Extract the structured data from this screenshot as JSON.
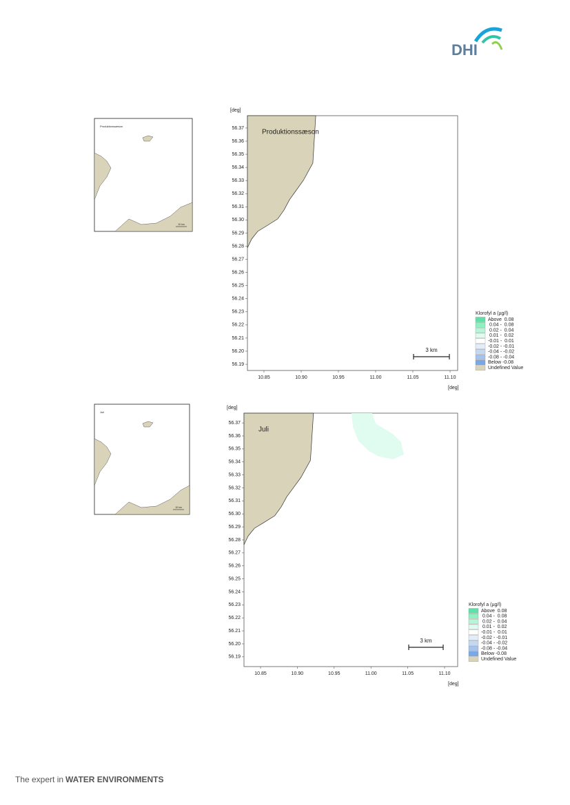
{
  "header": {
    "logo": "DHI"
  },
  "maps": [
    {
      "title": "Produktionssæson",
      "y_unit": "[deg]",
      "x_unit": "[deg]",
      "ylim": [
        56.1853,
        56.3794
      ],
      "xlim": [
        10.8278,
        11.1102
      ],
      "yticks": [
        56.19,
        {
          "value": 56.2,
          "label": "56.20"
        },
        56.21,
        56.22,
        56.23,
        56.24,
        56.25,
        56.26,
        56.27,
        56.28,
        56.29,
        {
          "value": 56.3,
          "label": "56.30"
        },
        56.31,
        56.32,
        56.33,
        56.34,
        56.35,
        56.36,
        56.37
      ],
      "xticks": [
        10.85,
        {
          "value": 10.9,
          "label": "10.90"
        },
        10.95,
        {
          "value": 11,
          "label": "11.00"
        },
        11.05,
        {
          "value": 11.1,
          "label": "11.10"
        }
      ],
      "scale_label": "3 km",
      "legend": {
        "title": "Klorofyl a (µg/l)",
        "entries": [
          {
            "label": "Above  0.08",
            "color": "#5fe0a8"
          },
          {
            "label": " 0.04 -  0.08",
            "color": "#8ff0c0"
          },
          {
            "label": " 0.02 -  0.04",
            "color": "#b8f5d8"
          },
          {
            "label": " 0.01 -  0.02",
            "color": "#e0fbef"
          },
          {
            "label": "-0.01 -  0.01",
            "color": "#ffffff"
          },
          {
            "label": "-0.02 - -0.01",
            "color": "#e3edf9"
          },
          {
            "label": "-0.04 - -0.02",
            "color": "#c5d8f2"
          },
          {
            "label": "-0.08 - -0.04",
            "color": "#a5c3ec"
          },
          {
            "label": "Below -0.08",
            "color": "#7aa8e4"
          },
          {
            "label": "Undefined Value",
            "color": "#d9d4b9"
          }
        ]
      },
      "inset": {
        "title": "Produktionssæson",
        "scale_label": "10 km"
      }
    },
    {
      "title": "Juli",
      "y_unit": "[deg]",
      "x_unit": "[deg]",
      "ylim": [
        56.1825,
        56.3775
      ],
      "xlim": [
        10.8275,
        11.1178
      ],
      "yticks": [
        56.19,
        {
          "value": 56.2,
          "label": "56.20"
        },
        56.21,
        56.22,
        56.23,
        56.24,
        56.25,
        56.26,
        56.27,
        56.28,
        56.29,
        {
          "value": 56.3,
          "label": "56.30"
        },
        56.31,
        56.32,
        56.33,
        56.34,
        56.35,
        56.36,
        56.37
      ],
      "xticks": [
        10.85,
        {
          "value": 10.9,
          "label": "10.90"
        },
        10.95,
        {
          "value": 11,
          "label": "11.00"
        },
        11.05,
        {
          "value": 11.1,
          "label": "11.10"
        }
      ],
      "scale_label": "3 km",
      "legend": {
        "title": "Klorofyl a (µg/l)",
        "entries": [
          {
            "label": "Above  0.08",
            "color": "#5fe0a8"
          },
          {
            "label": " 0.04 -  0.08",
            "color": "#8ff0c0"
          },
          {
            "label": " 0.02 -  0.04",
            "color": "#b8f5d8"
          },
          {
            "label": " 0.01 -  0.02",
            "color": "#e0fbef"
          },
          {
            "label": "-0.01 -  0.01",
            "color": "#ffffff"
          },
          {
            "label": "-0.02 - -0.01",
            "color": "#e3edf9"
          },
          {
            "label": "-0.04 - -0.02",
            "color": "#c5d8f2"
          },
          {
            "label": "-0.08 - -0.04",
            "color": "#a5c3ec"
          },
          {
            "label": "Below -0.08",
            "color": "#7aa8e4"
          },
          {
            "label": "Undefined Value",
            "color": "#d9d4b9"
          }
        ]
      },
      "inset": {
        "title": "Juli",
        "scale_label": "10 km"
      }
    }
  ],
  "footer": {
    "lead": "The expert in",
    "brand": "WATER ENVIRONMENTS"
  }
}
